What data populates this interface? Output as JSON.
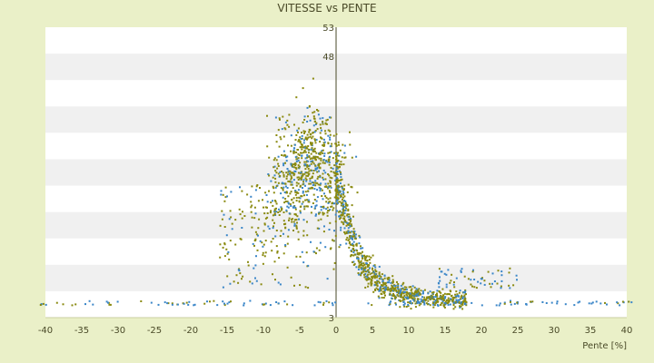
{
  "chart_data": {
    "type": "scatter",
    "title": "VITESSE vs PENTE",
    "xlabel": "Pente [%]",
    "ylabel": "",
    "xlim": [
      -40,
      40
    ],
    "ylim": [
      3,
      53
    ],
    "x_ticks": [
      -40,
      -35,
      -30,
      -25,
      -20,
      -15,
      -10,
      -5,
      0,
      5,
      10,
      15,
      20,
      25,
      30,
      35,
      40
    ],
    "y_ticks": [
      3,
      48,
      53
    ],
    "grid": "horizontal alternating bands",
    "point_clusters": [
      {
        "name_hint": "descent peak",
        "x_center": -4,
        "x_spread": 4,
        "y_center": 27,
        "y_spread": 10
      },
      {
        "name_hint": "climb decay",
        "x_center": 8,
        "x_spread": 5,
        "y_center": 9,
        "y_spread": 3
      },
      {
        "name_hint": "baseline",
        "x_range": [
          -41,
          41
        ],
        "y": 5.5
      }
    ],
    "colors": {
      "series_olive": "#8a8a10",
      "series_blue": "#3a86c8",
      "band": "#f0f0f0",
      "plot_bg": "#ffffff",
      "axis": "#4a4a28"
    }
  }
}
